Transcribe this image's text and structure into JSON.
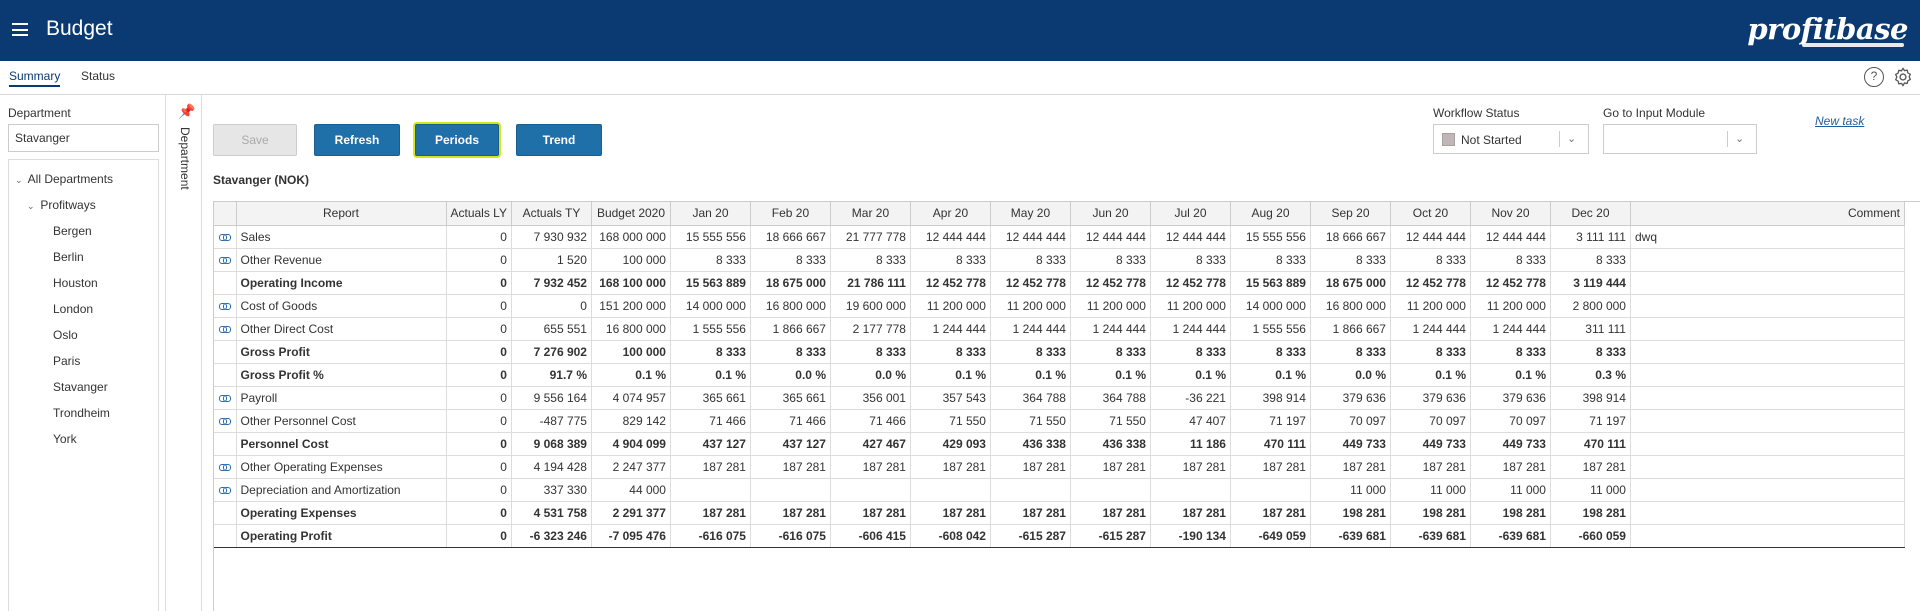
{
  "app": {
    "title": "Budget",
    "logo": "profitbase"
  },
  "tabs": [
    {
      "label": "Summary",
      "active": true
    },
    {
      "label": "Status",
      "active": false
    }
  ],
  "icons": {
    "menu": "hamburger-icon",
    "help": "help-icon",
    "settings": "gear-icon",
    "pin": "pin-icon",
    "row_link": "link-icon"
  },
  "sidebar": {
    "label": "Department",
    "selected": "Stavanger",
    "tree": {
      "root": "All Departments",
      "group": "Profitways",
      "items": [
        "Bergen",
        "Berlin",
        "Houston",
        "London",
        "Oslo",
        "Paris",
        "Stavanger",
        "Trondheim",
        "York"
      ]
    },
    "vertical_label": "Department"
  },
  "toolbar": {
    "save_label": "Save",
    "refresh_label": "Refresh",
    "periods_label": "Periods",
    "trend_label": "Trend"
  },
  "workflow": {
    "label": "Workflow Status",
    "value": "Not Started",
    "swatch_color": "#bfb6b6"
  },
  "input_module": {
    "label": "Go to Input Module",
    "value": ""
  },
  "new_task_label": "New task",
  "report": {
    "title": "Stavanger (NOK)",
    "columns": [
      "Report",
      "Actuals LY",
      "Actuals TY",
      "Budget 2020",
      "Jan 20",
      "Feb 20",
      "Mar 20",
      "Apr 20",
      "May 20",
      "Jun 20",
      "Jul 20",
      "Aug 20",
      "Sep 20",
      "Oct 20",
      "Nov 20",
      "Dec 20",
      "Comment"
    ],
    "rows": [
      {
        "name": "Sales",
        "link": true,
        "type": "normal",
        "values": [
          "0",
          "7 930 932",
          "168 000 000",
          "15 555 556",
          "18 666 667",
          "21 777 778",
          "12 444 444",
          "12 444 444",
          "12 444 444",
          "12 444 444",
          "15 555 556",
          "18 666 667",
          "12 444 444",
          "12 444 444",
          "3 111 111"
        ],
        "comment": "dwq"
      },
      {
        "name": "Other Revenue",
        "link": true,
        "type": "normal",
        "values": [
          "0",
          "1 520",
          "100 000",
          "8 333",
          "8 333",
          "8 333",
          "8 333",
          "8 333",
          "8 333",
          "8 333",
          "8 333",
          "8 333",
          "8 333",
          "8 333",
          "8 333"
        ],
        "comment": ""
      },
      {
        "name": "Operating Income",
        "link": false,
        "type": "total",
        "values": [
          "0",
          "7 932 452",
          "168 100 000",
          "15 563 889",
          "18 675 000",
          "21 786 111",
          "12 452 778",
          "12 452 778",
          "12 452 778",
          "12 452 778",
          "15 563 889",
          "18 675 000",
          "12 452 778",
          "12 452 778",
          "3 119 444"
        ],
        "comment": ""
      },
      {
        "name": "Cost of Goods",
        "link": true,
        "type": "normal",
        "values": [
          "0",
          "0",
          "151 200 000",
          "14 000 000",
          "16 800 000",
          "19 600 000",
          "11 200 000",
          "11 200 000",
          "11 200 000",
          "11 200 000",
          "14 000 000",
          "16 800 000",
          "11 200 000",
          "11 200 000",
          "2 800 000"
        ],
        "comment": ""
      },
      {
        "name": "Other Direct Cost",
        "link": true,
        "type": "normal",
        "values": [
          "0",
          "655 551",
          "16 800 000",
          "1 555 556",
          "1 866 667",
          "2 177 778",
          "1 244 444",
          "1 244 444",
          "1 244 444",
          "1 244 444",
          "1 555 556",
          "1 866 667",
          "1 244 444",
          "1 244 444",
          "311 111"
        ],
        "comment": ""
      },
      {
        "name": "Gross Profit",
        "link": false,
        "type": "total",
        "values": [
          "0",
          "7 276 902",
          "100 000",
          "8 333",
          "8 333",
          "8 333",
          "8 333",
          "8 333",
          "8 333",
          "8 333",
          "8 333",
          "8 333",
          "8 333",
          "8 333",
          "8 333"
        ],
        "comment": ""
      },
      {
        "name": "Gross Profit %",
        "link": false,
        "type": "pct",
        "values": [
          "0",
          "91.7 %",
          "0.1 %",
          "0.1 %",
          "0.0 %",
          "0.0 %",
          "0.1 %",
          "0.1 %",
          "0.1 %",
          "0.1 %",
          "0.1 %",
          "0.0 %",
          "0.1 %",
          "0.1 %",
          "0.3 %"
        ],
        "comment": ""
      },
      {
        "name": "Payroll",
        "link": true,
        "type": "normal",
        "values": [
          "0",
          "9 556 164",
          "4 074 957",
          "365 661",
          "365 661",
          "356 001",
          "357 543",
          "364 788",
          "364 788",
          "-36 221",
          "398 914",
          "379 636",
          "379 636",
          "379 636",
          "398 914"
        ],
        "comment": ""
      },
      {
        "name": "Other Personnel Cost",
        "link": true,
        "type": "normal",
        "values": [
          "0",
          "-487 775",
          "829 142",
          "71 466",
          "71 466",
          "71 466",
          "71 550",
          "71 550",
          "71 550",
          "47 407",
          "71 197",
          "70 097",
          "70 097",
          "70 097",
          "71 197"
        ],
        "comment": ""
      },
      {
        "name": "Personnel Cost",
        "link": false,
        "type": "total",
        "values": [
          "0",
          "9 068 389",
          "4 904 099",
          "437 127",
          "437 127",
          "427 467",
          "429 093",
          "436 338",
          "436 338",
          "11 186",
          "470 111",
          "449 733",
          "449 733",
          "449 733",
          "470 111"
        ],
        "comment": ""
      },
      {
        "name": "Other Operating Expenses",
        "link": true,
        "type": "normal",
        "values": [
          "0",
          "4 194 428",
          "2 247 377",
          "187 281",
          "187 281",
          "187 281",
          "187 281",
          "187 281",
          "187 281",
          "187 281",
          "187 281",
          "187 281",
          "187 281",
          "187 281",
          "187 281"
        ],
        "comment": ""
      },
      {
        "name": "Depreciation and Amortization",
        "link": true,
        "type": "normal",
        "values": [
          "0",
          "337 330",
          "44 000",
          "",
          "",
          "",
          "",
          "",
          "",
          "",
          "",
          "11 000",
          "11 000",
          "11 000",
          "11 000"
        ],
        "comment": ""
      },
      {
        "name": "Operating Expenses",
        "link": false,
        "type": "total",
        "values": [
          "0",
          "4 531 758",
          "2 291 377",
          "187 281",
          "187 281",
          "187 281",
          "187 281",
          "187 281",
          "187 281",
          "187 281",
          "187 281",
          "198 281",
          "198 281",
          "198 281",
          "198 281"
        ],
        "comment": ""
      },
      {
        "name": "Operating Profit",
        "link": false,
        "type": "total-last",
        "values": [
          "0",
          "-6 323 246",
          "-7 095 476",
          "-616 075",
          "-616 075",
          "-606 415",
          "-608 042",
          "-615 287",
          "-615 287",
          "-190 134",
          "-649 059",
          "-639 681",
          "-639 681",
          "-639 681",
          "-660 059"
        ],
        "comment": ""
      }
    ]
  }
}
